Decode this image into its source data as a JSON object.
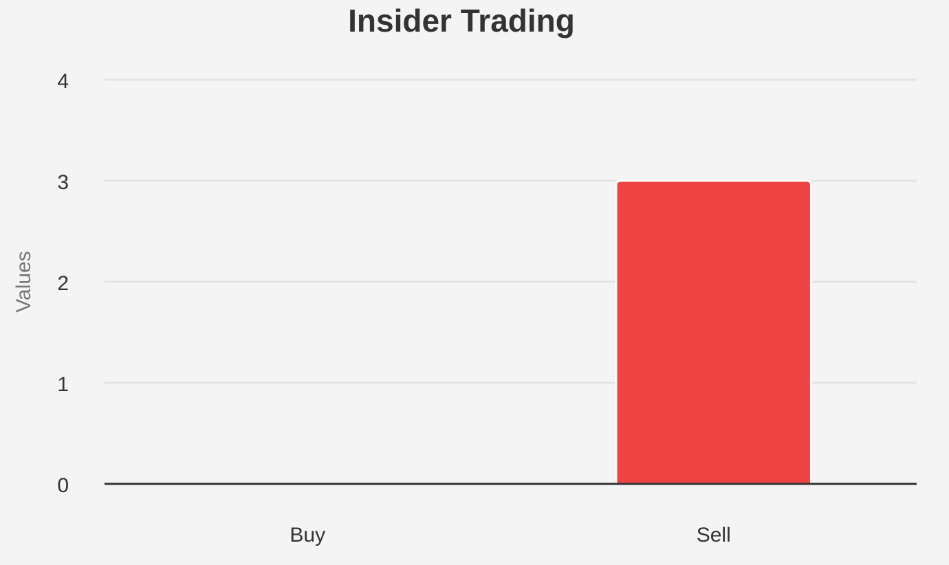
{
  "chart_data": {
    "type": "bar",
    "title": "Insider Trading",
    "y_label": "Values",
    "categories": [
      "Buy",
      "Sell"
    ],
    "values": [
      0,
      3
    ],
    "color": "#ef4444",
    "ylim": [
      0,
      4
    ],
    "yticks": [
      0,
      1,
      2,
      3,
      4
    ],
    "grid": true
  }
}
